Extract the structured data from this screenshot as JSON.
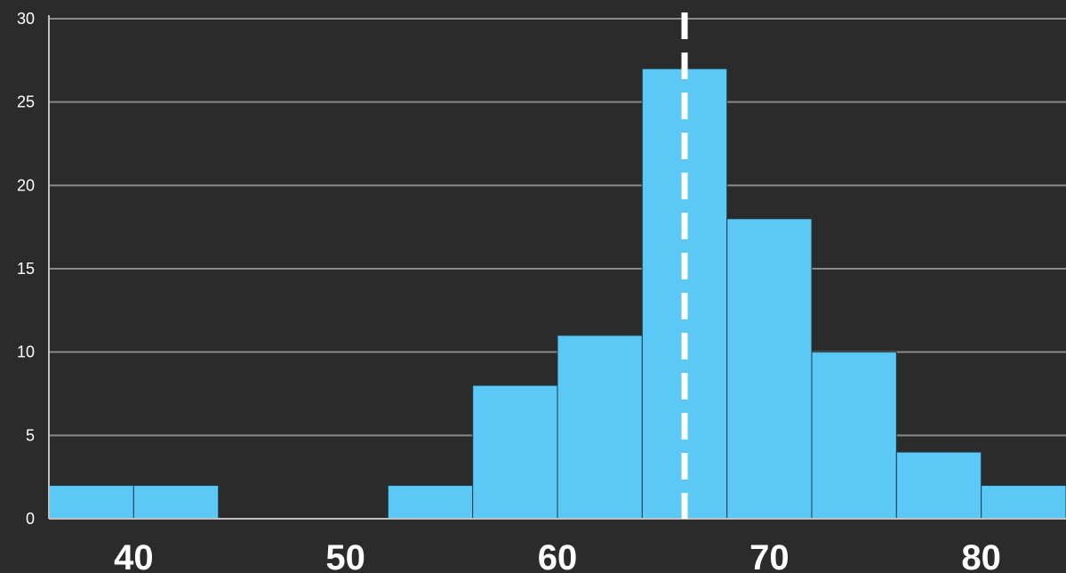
{
  "chart_data": {
    "type": "bar",
    "title": "",
    "xlabel": "",
    "ylabel": "",
    "bins": [
      {
        "x0": 36,
        "x1": 40,
        "count": 2
      },
      {
        "x0": 40,
        "x1": 44,
        "count": 2
      },
      {
        "x0": 44,
        "x1": 48,
        "count": 0
      },
      {
        "x0": 48,
        "x1": 52,
        "count": 0
      },
      {
        "x0": 52,
        "x1": 56,
        "count": 2
      },
      {
        "x0": 56,
        "x1": 60,
        "count": 8
      },
      {
        "x0": 60,
        "x1": 64,
        "count": 11
      },
      {
        "x0": 64,
        "x1": 68,
        "count": 27
      },
      {
        "x0": 68,
        "x1": 72,
        "count": 18
      },
      {
        "x0": 72,
        "x1": 76,
        "count": 10
      },
      {
        "x0": 76,
        "x1": 80,
        "count": 4
      },
      {
        "x0": 80,
        "x1": 84,
        "count": 2
      }
    ],
    "reference_line": {
      "x": 66,
      "style": "dashed",
      "color": "#ffffff"
    },
    "xlim": [
      36,
      84
    ],
    "ylim": [
      0,
      30
    ],
    "xticks": [
      40,
      50,
      60,
      70,
      80
    ],
    "yticks": [
      0,
      5,
      10,
      15,
      20,
      25,
      30
    ],
    "grid": "horizontal",
    "colors": {
      "background": "#2b2b2b",
      "bar": "#5bc8f5",
      "bar_edge": "#1f3a4a",
      "grid": "#8a8a8a",
      "axis": "#bfbfbf",
      "text": "#ffffff"
    }
  }
}
